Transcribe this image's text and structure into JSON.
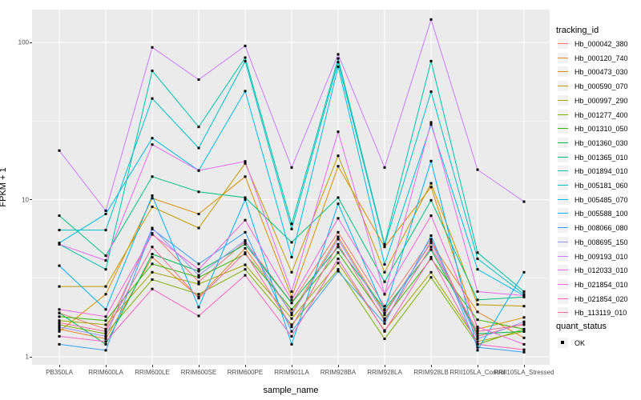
{
  "figure": {
    "y_axis": {
      "title": "FPKM + 1",
      "ticks": [
        {
          "label": "100",
          "value": 100
        },
        {
          "label": "10",
          "value": 10
        },
        {
          "label": "1",
          "value": 1
        }
      ]
    },
    "x_axis": {
      "title": "sample_name"
    },
    "legend": {
      "tracking_title": "tracking_id",
      "quant_title": "quant_status",
      "quant_items": [
        {
          "label": "OK"
        }
      ]
    },
    "colors": {
      "panel_bg": "#EBEBEB",
      "grid": "#FFFFFF",
      "point": "#000000",
      "legend_key_bg": "#F2F2F2",
      "tick_text": "#4D4D4D"
    }
  },
  "chart_data": {
    "type": "line",
    "title": "",
    "xlabel": "sample_name",
    "ylabel": "FPKM + 1",
    "y_scale": "log10",
    "ylim": [
      1,
      158
    ],
    "grid": "on",
    "legend_position": "right",
    "point_shape": "filled-square",
    "quant_status": "OK",
    "x_categories": [
      "PB350LA",
      "RRIM600LA",
      "RRIM600LE",
      "RRIM600SE",
      "RRIM600PE",
      "RRIM901LA",
      "RRIM928BA",
      "RRIM928LA",
      "RRIM928LB",
      "RRII105LA_Control",
      "RRII105LA_Stressed"
    ],
    "series": [
      {
        "name": "Hb_000042_380",
        "color": "#F8766D",
        "values": [
          1.9,
          1.5,
          6.1,
          3.0,
          5.4,
          2.2,
          6.2,
          2.1,
          5.6,
          1.35,
          1.62
        ]
      },
      {
        "name": "Hb_000120_740",
        "color": "#E88526",
        "values": [
          1.5,
          1.3,
          4.3,
          2.4,
          4.9,
          1.9,
          5.8,
          1.9,
          5.3,
          1.93,
          1.32
        ]
      },
      {
        "name": "Hb_000473_030",
        "color": "#D89000",
        "values": [
          1.45,
          2.5,
          10.2,
          8.1,
          14,
          2.4,
          16.3,
          5.0,
          12.0,
          1.5,
          1.78
        ]
      },
      {
        "name": "Hb_000590_070",
        "color": "#C09B00",
        "values": [
          2.8,
          2.8,
          9.0,
          6.6,
          17,
          3.45,
          19,
          3.45,
          12.7,
          2.15,
          2.1
        ]
      },
      {
        "name": "Hb_000997_290",
        "color": "#A3A500",
        "values": [
          1.7,
          1.6,
          3.45,
          2.9,
          3.85,
          1.75,
          3.95,
          1.47,
          3.45,
          1.25,
          1.45
        ]
      },
      {
        "name": "Hb_001277_400",
        "color": "#7CAE00",
        "values": [
          1.6,
          1.4,
          3.1,
          2.5,
          3.6,
          1.6,
          3.6,
          1.3,
          3.2,
          1.2,
          1.5
        ]
      },
      {
        "name": "Hb_001310_050",
        "color": "#39B600",
        "values": [
          1.8,
          1.7,
          3.9,
          3.2,
          4.5,
          2.0,
          4.6,
          1.75,
          4.2,
          1.72,
          1.5
        ]
      },
      {
        "name": "Hb_001360_030",
        "color": "#00BB4E",
        "values": [
          1.9,
          1.2,
          4.5,
          3.5,
          5.2,
          2.2,
          5.0,
          2.0,
          4.8,
          1.4,
          1.45
        ]
      },
      {
        "name": "Hb_001365_010",
        "color": "#00BF7D",
        "values": [
          7.9,
          4.4,
          14,
          11.2,
          10.3,
          5.35,
          10.3,
          3.0,
          9.9,
          2.3,
          2.4
        ]
      },
      {
        "name": "Hb_001894_010",
        "color": "#00C1A3",
        "values": [
          5.2,
          3.6,
          66,
          29,
          80,
          7.0,
          79,
          5.2,
          76,
          4.6,
          2.6
        ]
      },
      {
        "name": "Hb_005181_060",
        "color": "#00BFC4",
        "values": [
          6.4,
          6.4,
          44,
          21.3,
          76,
          6.5,
          75,
          5.1,
          48.6,
          4.2,
          2.5
        ]
      },
      {
        "name": "Hb_005485_070",
        "color": "#00BAE0",
        "values": [
          5.3,
          8.1,
          24.6,
          15.3,
          49,
          4.3,
          70,
          3.87,
          30,
          3.6,
          2.45
        ]
      },
      {
        "name": "Hb_005588_100",
        "color": "#00B0F6",
        "values": [
          3.8,
          2.0,
          10.6,
          2.07,
          10,
          1.2,
          9.4,
          1.98,
          17.6,
          1.1,
          3.45
        ]
      },
      {
        "name": "Hb_008066_080",
        "color": "#35A2FF",
        "values": [
          1.2,
          1.1,
          6.5,
          3.9,
          6.2,
          1.45,
          3.5,
          1.63,
          5.9,
          1.15,
          1.07
        ]
      },
      {
        "name": "Hb_008695_150",
        "color": "#9590FF",
        "values": [
          1.55,
          1.35,
          6.6,
          3.3,
          5.5,
          1.85,
          5.6,
          1.85,
          5.4,
          1.3,
          1.67
        ]
      },
      {
        "name": "Hb_009193_010",
        "color": "#C77CFF",
        "values": [
          20.5,
          8.5,
          93,
          58,
          95,
          16,
          84,
          16,
          140,
          15.5,
          9.7
        ]
      },
      {
        "name": "Hb_012033_010",
        "color": "#E76BF3",
        "values": [
          5.2,
          4.1,
          22.4,
          15.3,
          17.5,
          2.6,
          27,
          2.5,
          31,
          2.6,
          2.45
        ]
      },
      {
        "name": "Hb_021854_010",
        "color": "#FA62DB",
        "values": [
          2.0,
          1.8,
          6.0,
          3.6,
          7.4,
          2.3,
          7.6,
          2.5,
          7.9,
          1.55,
          1.2
        ]
      },
      {
        "name": "Hb_021854_020",
        "color": "#FF62BC",
        "values": [
          1.35,
          1.25,
          2.7,
          1.82,
          3.3,
          1.35,
          4.2,
          1.45,
          4.3,
          1.2,
          1.11
        ]
      },
      {
        "name": "Hb_113119_010",
        "color": "#FF6A98",
        "values": [
          1.65,
          1.45,
          5.0,
          2.36,
          4.6,
          1.55,
          5.2,
          1.7,
          5.0,
          1.45,
          1.6
        ]
      }
    ]
  }
}
